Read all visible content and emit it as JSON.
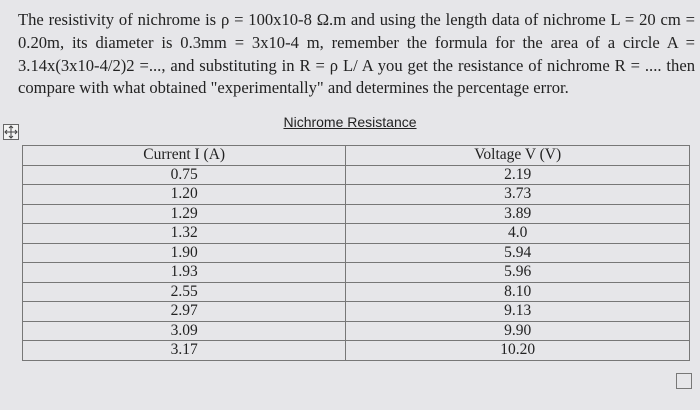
{
  "paragraph": "The resistivity of nichrome is ρ = 100x10-8 Ω.m and using the length data of nichrome L = 20 cm = 0.20m, its diameter is 0.3mm = 3x10-4 m, remember the formula for the area of a circle A = 3.14x(3x10-4/2)2 =..., and substituting in R = ρ L/ A you get the resistance of nichrome R = .... then compare with what obtained \"experimentally\" and determines the percentage error.",
  "table": {
    "caption": "Nichrome Resistance",
    "header": [
      "Current I (A)",
      "Voltage V (V)"
    ],
    "rows": [
      [
        "0.75",
        "2.19"
      ],
      [
        "1.20",
        "3.73"
      ],
      [
        "1.29",
        "3.89"
      ],
      [
        "1.32",
        "4.0"
      ],
      [
        "1.90",
        "5.94"
      ],
      [
        "1.93",
        "5.96"
      ],
      [
        "2.55",
        "8.10"
      ],
      [
        "2.97",
        "9.13"
      ],
      [
        "3.09",
        "9.90"
      ],
      [
        "3.17",
        "10.20"
      ]
    ]
  }
}
